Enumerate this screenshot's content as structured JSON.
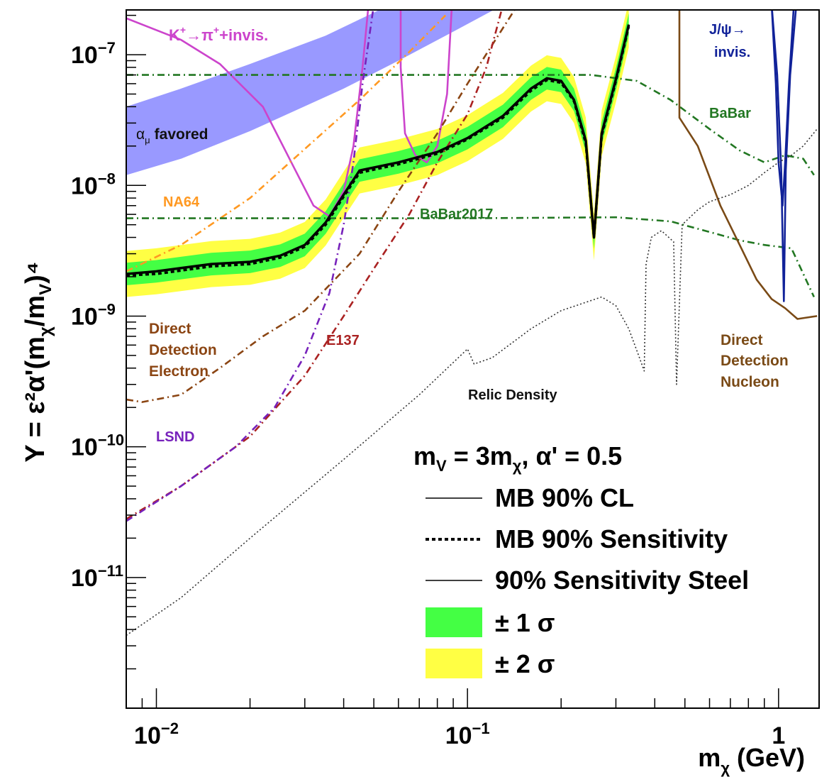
{
  "chart_data": {
    "type": "line",
    "xlabel": "m",
    "xlabel_sub": "χ",
    "xlabel_unit": "(GeV)",
    "ylabel": "Y = ε²α'(m",
    "ylabel_sub1": "χ",
    "ylabel_mid": "/m",
    "ylabel_sub2": "V",
    "ylabel_end": ")⁴",
    "x_scale": "log",
    "y_scale": "log",
    "xlim": [
      0.008,
      1.35
    ],
    "ylim": [
      1e-12,
      2.2e-07
    ],
    "grid": false,
    "x_ticks": [
      {
        "value": 0.01,
        "base": "10",
        "exp": "−2"
      },
      {
        "value": 0.1,
        "base": "10",
        "exp": "−1"
      },
      {
        "value": 1.0,
        "base": "1",
        "exp": ""
      }
    ],
    "y_ticks": [
      {
        "value": 1e-11,
        "base": "10",
        "exp": "−11"
      },
      {
        "value": 1e-10,
        "base": "10",
        "exp": "−10"
      },
      {
        "value": 1e-09,
        "base": "10",
        "exp": "−9"
      },
      {
        "value": 1e-08,
        "base": "10",
        "exp": "−8"
      },
      {
        "value": 1e-07,
        "base": "10",
        "exp": "−7"
      }
    ],
    "band_alpha_mu": {
      "lower": [
        [
          0.008,
          1.2e-08
        ],
        [
          0.012,
          1.6e-08
        ],
        [
          0.02,
          2.6e-08
        ],
        [
          0.04,
          5.5e-08
        ],
        [
          0.06,
          9e-08
        ],
        [
          0.09,
          1.5e-07
        ],
        [
          0.13,
          2.4e-07
        ]
      ],
      "upper": [
        [
          0.008,
          4e-08
        ],
        [
          0.012,
          5.5e-08
        ],
        [
          0.02,
          8.5e-08
        ],
        [
          0.035,
          1.4e-07
        ],
        [
          0.05,
          2.1e-07
        ],
        [
          0.06,
          2.6e-07
        ]
      ]
    },
    "mb_limit": [
      [
        0.008,
        2.1e-09
      ],
      [
        0.01,
        2.2e-09
      ],
      [
        0.015,
        2.5e-09
      ],
      [
        0.02,
        2.6e-09
      ],
      [
        0.025,
        2.9e-09
      ],
      [
        0.03,
        3.5e-09
      ],
      [
        0.035,
        5.2e-09
      ],
      [
        0.04,
        8.5e-09
      ],
      [
        0.045,
        1.3e-08
      ],
      [
        0.06,
        1.5e-08
      ],
      [
        0.08,
        1.8e-08
      ],
      [
        0.1,
        2.3e-08
      ],
      [
        0.13,
        3.4e-08
      ],
      [
        0.16,
        5.5e-08
      ],
      [
        0.18,
        6.6e-08
      ],
      [
        0.2,
        6.3e-08
      ],
      [
        0.22,
        4.5e-08
      ],
      [
        0.24,
        2.2e-08
      ],
      [
        0.255,
        4e-09
      ],
      [
        0.27,
        2.5e-08
      ],
      [
        0.3,
        6.5e-08
      ],
      [
        0.33,
        1.7e-07
      ]
    ],
    "mb_sensitivity": [
      [
        0.008,
        2.05e-09
      ],
      [
        0.01,
        2.1e-09
      ],
      [
        0.015,
        2.4e-09
      ],
      [
        0.02,
        2.5e-09
      ],
      [
        0.025,
        2.8e-09
      ],
      [
        0.03,
        3.4e-09
      ],
      [
        0.035,
        5e-09
      ],
      [
        0.04,
        8.2e-09
      ],
      [
        0.045,
        1.25e-08
      ],
      [
        0.06,
        1.45e-08
      ],
      [
        0.08,
        1.75e-08
      ],
      [
        0.1,
        2.25e-08
      ],
      [
        0.13,
        3.3e-08
      ],
      [
        0.16,
        5.3e-08
      ],
      [
        0.18,
        6.4e-08
      ],
      [
        0.2,
        6.1e-08
      ],
      [
        0.22,
        4.4e-08
      ],
      [
        0.24,
        2.1e-08
      ],
      [
        0.255,
        4e-09
      ],
      [
        0.27,
        2.4e-08
      ],
      [
        0.3,
        6.3e-08
      ],
      [
        0.33,
        1.65e-07
      ]
    ],
    "band_1sigma_factor": 1.22,
    "band_2sigma_factor": 1.5,
    "series": [
      {
        "name": "K⁺→π⁺+invis.",
        "color": "#cc44cc",
        "style": "solid",
        "segments": [
          [
            [
              0.008,
              1.9e-07
            ],
            [
              0.012,
              1.3e-07
            ],
            [
              0.016,
              8.5e-08
            ],
            [
              0.022,
              4e-08
            ],
            [
              0.028,
              1.3e-08
            ],
            [
              0.032,
              7e-09
            ],
            [
              0.036,
              5.8e-09
            ],
            [
              0.04,
              9e-09
            ],
            [
              0.043,
              2e-08
            ],
            [
              0.046,
              8e-08
            ],
            [
              0.048,
              2.3e-07
            ]
          ],
          [
            [
              0.061,
              2.3e-07
            ],
            [
              0.061,
              8e-08
            ],
            [
              0.063,
              2.5e-08
            ],
            [
              0.068,
              1.7e-08
            ],
            [
              0.074,
              1.5e-08
            ],
            [
              0.08,
              2e-08
            ],
            [
              0.086,
              5e-08
            ],
            [
              0.089,
              2.3e-07
            ]
          ]
        ]
      },
      {
        "name": "NA64",
        "color": "#ff9922",
        "style": "dashdot",
        "segments": [
          [
            [
              0.008,
              2.2e-09
            ],
            [
              0.012,
              3.5e-09
            ],
            [
              0.02,
              8e-09
            ],
            [
              0.03,
              1.9e-08
            ],
            [
              0.045,
              4.5e-08
            ],
            [
              0.065,
              1.05e-07
            ],
            [
              0.085,
              2e-07
            ]
          ]
        ]
      },
      {
        "name": "BaBar2017",
        "color": "#227722",
        "style": "dashdot",
        "segments": [
          [
            [
              0.008,
              5.6e-09
            ],
            [
              0.1,
              5.6e-09
            ],
            [
              0.3,
              5.7e-09
            ],
            [
              0.45,
              5.3e-09
            ],
            [
              0.6,
              4.4e-09
            ],
            [
              0.75,
              3.8e-09
            ],
            [
              0.9,
              3.5e-09
            ],
            [
              1.1,
              3.3e-09
            ],
            [
              1.3,
              1.4e-09
            ]
          ]
        ]
      },
      {
        "name": "BaBar",
        "color": "#227722",
        "style": "dashdot",
        "segments": [
          [
            [
              0.008,
              7e-08
            ],
            [
              0.1,
              7e-08
            ],
            [
              0.25,
              7e-08
            ],
            [
              0.35,
              6.3e-08
            ],
            [
              0.45,
              4.5e-08
            ],
            [
              0.6,
              2.7e-08
            ],
            [
              0.75,
              1.85e-08
            ],
            [
              0.9,
              1.5e-08
            ],
            [
              1.05,
              1.7e-08
            ],
            [
              1.2,
              1.6e-08
            ],
            [
              1.3,
              1.2e-08
            ]
          ]
        ]
      },
      {
        "name": "Direct Detection Electron",
        "color": "#8b4513",
        "style": "dashdot",
        "segments": [
          [
            [
              0.008,
              2.3e-10
            ],
            [
              0.009,
              2.2e-10
            ],
            [
              0.012,
              2.5e-10
            ],
            [
              0.016,
              4e-10
            ],
            [
              0.022,
              7e-10
            ],
            [
              0.03,
              1.1e-09
            ],
            [
              0.045,
              3e-09
            ],
            [
              0.06,
              9e-09
            ],
            [
              0.08,
              2.5e-08
            ],
            [
              0.1,
              6e-08
            ],
            [
              0.13,
              1.6e-07
            ],
            [
              0.145,
              2.4e-07
            ]
          ]
        ]
      },
      {
        "name": "E137",
        "color": "#aa2222",
        "style": "dashdot",
        "segments": [
          [
            [
              0.008,
              2.8e-11
            ],
            [
              0.012,
              5e-11
            ],
            [
              0.02,
              1.2e-10
            ],
            [
              0.03,
              3.5e-10
            ],
            [
              0.04,
              1e-09
            ],
            [
              0.05,
              2.3e-09
            ],
            [
              0.065,
              6e-09
            ],
            [
              0.08,
              1.5e-08
            ],
            [
              0.1,
              3.5e-08
            ],
            [
              0.115,
              8e-08
            ],
            [
              0.13,
              2.4e-07
            ]
          ]
        ]
      },
      {
        "name": "LSND",
        "color": "#7722bb",
        "style": "dashdot",
        "segments": [
          [
            [
              0.008,
              2.7e-11
            ],
            [
              0.012,
              5e-11
            ],
            [
              0.018,
              1e-10
            ],
            [
              0.024,
              2e-10
            ],
            [
              0.03,
              5e-10
            ],
            [
              0.036,
              1.5e-09
            ],
            [
              0.04,
              5e-09
            ],
            [
              0.043,
              1.5e-08
            ],
            [
              0.046,
              6e-08
            ],
            [
              0.05,
              2.4e-07
            ]
          ]
        ]
      },
      {
        "name": "Direct Detection Nucleon",
        "color": "#7a4a16",
        "style": "solid",
        "segments": [
          [
            [
              0.48,
              2.4e-07
            ],
            [
              0.48,
              3.3e-08
            ],
            [
              0.55,
              2e-08
            ],
            [
              0.65,
              7e-09
            ],
            [
              0.75,
              3.5e-09
            ],
            [
              0.85,
              1.9e-09
            ],
            [
              0.95,
              1.35e-09
            ],
            [
              1.05,
              1.15e-09
            ],
            [
              1.15,
              9.5e-10
            ],
            [
              1.25,
              9.8e-10
            ],
            [
              1.33,
              1e-09
            ]
          ]
        ]
      },
      {
        "name": "J/ψ→ invis.",
        "color": "#112299",
        "style": "solid",
        "segments": [
          [
            [
              0.95,
              2.4e-07
            ],
            [
              0.99,
              7e-08
            ],
            [
              1.02,
              1.3e-08
            ],
            [
              1.04,
              1.3e-09
            ],
            [
              1.055,
              1.3e-08
            ],
            [
              1.09,
              7e-08
            ],
            [
              1.14,
              2.4e-07
            ]
          ],
          [
            [
              0.95,
              2.4e-07
            ],
            [
              0.98,
              6e-08
            ],
            [
              1.0,
              1.5e-08
            ],
            [
              1.03,
              7e-09
            ],
            [
              1.05,
              1.5e-08
            ],
            [
              1.08,
              6e-08
            ],
            [
              1.12,
              2.4e-07
            ]
          ]
        ]
      },
      {
        "name": "Relic Density",
        "color": "#333333",
        "style": "dotted",
        "segments": [
          [
            [
              0.008,
              3.6e-12
            ],
            [
              0.012,
              7e-12
            ],
            [
              0.02,
              2e-11
            ],
            [
              0.04,
              8e-11
            ],
            [
              0.07,
              2.5e-10
            ],
            [
              0.1,
              5.6e-10
            ],
            [
              0.105,
              4.3e-10
            ],
            [
              0.12,
              4.8e-10
            ],
            [
              0.16,
              8e-10
            ],
            [
              0.2,
              1.1e-09
            ],
            [
              0.27,
              1.4e-09
            ],
            [
              0.3,
              1.2e-09
            ],
            [
              0.33,
              8e-10
            ],
            [
              0.355,
              5e-10
            ],
            [
              0.37,
              3.8e-10
            ],
            [
              0.375,
              2.5e-09
            ],
            [
              0.39,
              4e-09
            ],
            [
              0.42,
              4.5e-09
            ],
            [
              0.46,
              3.7e-09
            ],
            [
              0.47,
              3e-10
            ],
            [
              0.49,
              5e-09
            ],
            [
              0.55,
              6.5e-09
            ],
            [
              0.6,
              7.5e-09
            ],
            [
              0.7,
              8.5e-09
            ],
            [
              0.8,
              1e-08
            ],
            [
              0.9,
              1.25e-08
            ],
            [
              1.0,
              1.5e-08
            ],
            [
              1.1,
              1.7e-08
            ],
            [
              1.2,
              2e-08
            ],
            [
              1.33,
              2.7e-08
            ]
          ]
        ]
      }
    ],
    "annotations": {
      "kplus": {
        "line1": "K",
        "sup1": "+",
        "mid": "→π",
        "sup2": "+",
        "end": "+invis.",
        "color": "#cc44cc"
      },
      "alpha_mu": {
        "greek": "α",
        "sub": "μ",
        "text": "favored",
        "color": "#111111"
      },
      "na64": {
        "text": "NA64",
        "color": "#ff9922"
      },
      "babar2017": {
        "text": "BaBar2017",
        "color": "#227722"
      },
      "babar": {
        "text": "BaBar",
        "color": "#227722"
      },
      "jpsi": {
        "line1": "J/ψ→",
        "line2": "invis.",
        "color": "#112299"
      },
      "dd_electron": {
        "line1": "Direct",
        "line2": "Detection",
        "line3": "Electron",
        "color": "#8b4513"
      },
      "e137": {
        "text": "E137",
        "color": "#aa2222"
      },
      "lsnd": {
        "text": "LSND",
        "color": "#7722bb"
      },
      "relic": {
        "text": "Relic Density",
        "color": "#111111"
      },
      "dd_nucleon": {
        "line1": "Direct",
        "line2": "Detection",
        "line3": "Nucleon",
        "color": "#7a4a16"
      }
    },
    "legend": {
      "placement": "bottom-right",
      "header_prefix": "m",
      "header_sub1": "V",
      "header_mid": " = 3m",
      "header_sub2": "χ",
      "header_end": ", α' = 0.5",
      "entries": [
        {
          "label": "MB 90% CL",
          "swatch": "line"
        },
        {
          "label": "MB 90% Sensitivity",
          "swatch": "dotted"
        },
        {
          "label": "90% Sensitivity Steel",
          "swatch": "line"
        },
        {
          "label": "± 1 σ",
          "swatch": "box",
          "color": "#44ff44"
        },
        {
          "label": "± 2 σ",
          "swatch": "box",
          "color": "#ffff44"
        }
      ]
    },
    "colors": {
      "band_alpha_mu": "#9999ff",
      "band_1sigma": "#44ff44",
      "band_2sigma": "#ffff44",
      "mb_line": "#000000"
    }
  }
}
